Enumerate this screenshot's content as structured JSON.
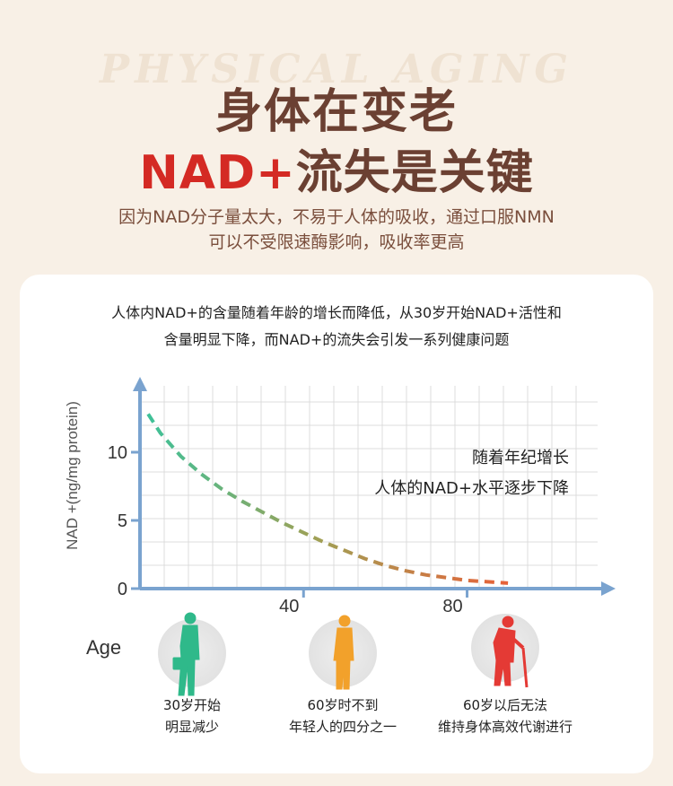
{
  "header": {
    "watermark": "PHYSICAL AGING",
    "title_line1": "身体在变老",
    "title_line2_red": "NAD+",
    "title_line2_brown": "流失是关键",
    "subtitle_line1": "因为NAD分子量太大，不易于人体的吸收，通过口服NMN",
    "subtitle_line2": "可以不受限速酶影响，吸收率更高"
  },
  "card": {
    "desc_line1": "人体内NAD+的含量随着年龄的增长而降低，从30岁开始NAD+活性和",
    "desc_line2": "含量明显下降，而NAD+的流失会引发一系列健康问题"
  },
  "chart_data": {
    "type": "line",
    "ylabel": "NAD +(ng/mg protein)",
    "xlabel": "Age",
    "ylim": [
      0,
      15
    ],
    "xlim": [
      0,
      115
    ],
    "y_ticks": [
      "0",
      "5",
      "10"
    ],
    "x_ticks": [
      "40",
      "80"
    ],
    "grid": true,
    "annotation_line1": "随着年纪增长",
    "annotation_line2": "人体的NAD+水平逐步下降",
    "series": [
      {
        "style": "dashed",
        "color_start": "#3cc29a",
        "color_mid": "#a0a055",
        "color_end": "#ef5a35",
        "x": [
          2,
          5,
          10,
          15,
          20,
          25,
          30,
          35,
          40,
          45,
          50,
          55,
          60,
          65,
          70,
          75,
          80,
          85,
          90
        ],
        "y": [
          12.8,
          11.4,
          9.7,
          8.4,
          7.3,
          6.4,
          5.6,
          4.8,
          4.1,
          3.4,
          2.8,
          2.2,
          1.7,
          1.3,
          1.0,
          0.8,
          0.6,
          0.5,
          0.4
        ]
      }
    ]
  },
  "figures": [
    {
      "color": "#2fb98a",
      "caption_line1": "30岁开始",
      "caption_line2": "明显减少"
    },
    {
      "color": "#f2a12b",
      "caption_line1": "60岁时不到",
      "caption_line2": "年轻人的四分之一"
    },
    {
      "color": "#e43a35",
      "caption_line1": "60岁以后无法",
      "caption_line2": "维持身体高效代谢进行"
    }
  ]
}
